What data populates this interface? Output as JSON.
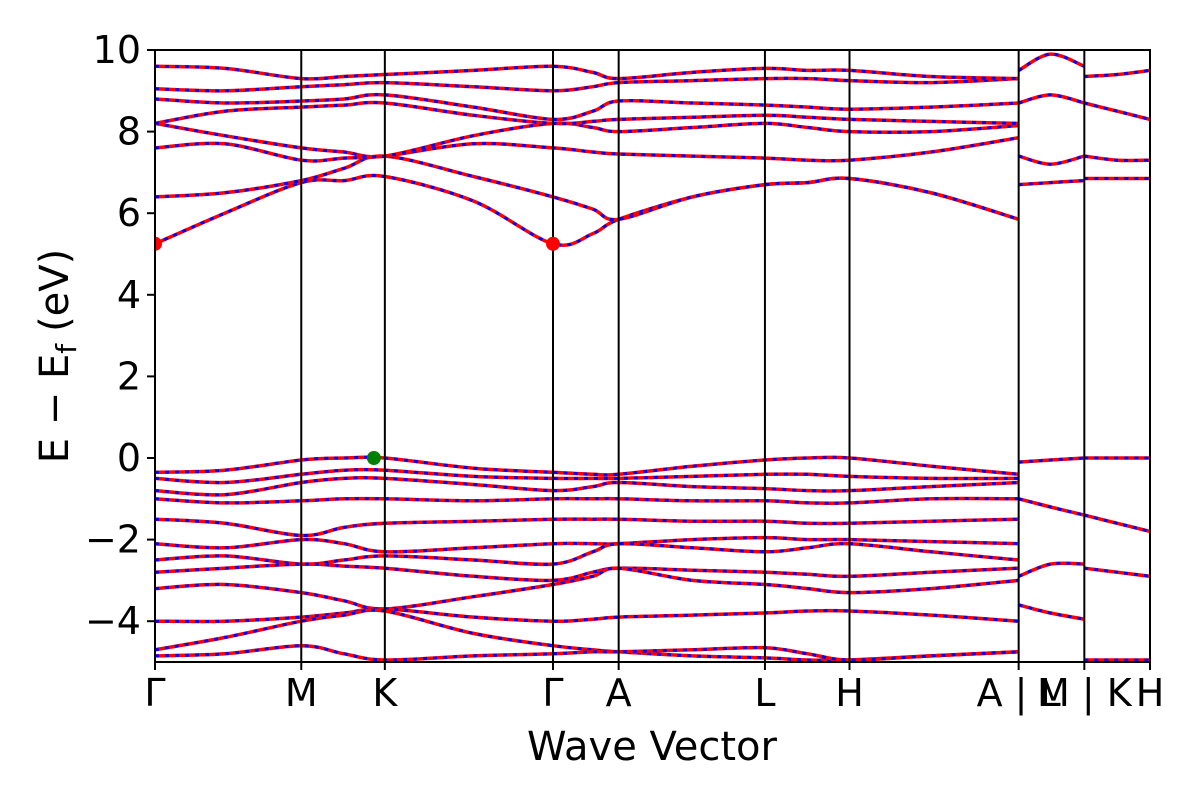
{
  "chart_data": {
    "type": "line",
    "title": "",
    "xlabel": "Wave Vector",
    "ylabel": "E − E_f (eV)",
    "ylabel_main": "E − E",
    "ylabel_sub": "f",
    "ylabel_unit": "(eV)",
    "ylim": [
      -5,
      10
    ],
    "xlim": [
      0,
      1
    ],
    "yticks": [
      -4,
      -2,
      0,
      2,
      4,
      6,
      8,
      10
    ],
    "ytick_labels": [
      "−4",
      "−2",
      "0",
      "2",
      "4",
      "6",
      "8",
      "10"
    ],
    "kpoints": [
      {
        "label": "Γ",
        "x": 0.0
      },
      {
        "label": "M",
        "x": 0.147
      },
      {
        "label": "K",
        "x": 0.231
      },
      {
        "label": "Γ",
        "x": 0.4
      },
      {
        "label": "A",
        "x": 0.466
      },
      {
        "label": "L",
        "x": 0.613
      },
      {
        "label": "H",
        "x": 0.698
      },
      {
        "label": "A | L",
        "x": 0.868
      },
      {
        "label": "M | K",
        "x": 0.934
      },
      {
        "label": "H",
        "x": 1.0
      }
    ],
    "segment_breaks": [
      0.868,
      0.934
    ],
    "grid": false,
    "legend": "none",
    "series_colors": {
      "primary": "#ff0000",
      "secondary": "#0000ff"
    },
    "series": [
      {
        "x": [
          0.0,
          0.07,
          0.147,
          0.19,
          0.231,
          0.32,
          0.4,
          0.44,
          0.466,
          0.54,
          0.613,
          0.656,
          0.698,
          0.78,
          0.868
        ],
        "values": [
          5.25,
          6.0,
          6.75,
          6.8,
          6.9,
          6.3,
          5.25,
          5.5,
          5.85,
          6.4,
          6.7,
          6.75,
          6.85,
          6.5,
          5.85
        ]
      },
      {
        "x": [
          0.0,
          0.07,
          0.147,
          0.19,
          0.231,
          0.32,
          0.4,
          0.44,
          0.466,
          0.54,
          0.613,
          0.656,
          0.698,
          0.78,
          0.868
        ],
        "values": [
          6.4,
          6.5,
          6.8,
          7.1,
          7.4,
          6.9,
          6.4,
          6.1,
          5.85,
          6.4,
          6.7,
          6.75,
          6.85,
          6.5,
          5.85
        ]
      },
      {
        "x": [
          0.0,
          0.07,
          0.147,
          0.19,
          0.231,
          0.32,
          0.4,
          0.44,
          0.466,
          0.54,
          0.613,
          0.656,
          0.698,
          0.78,
          0.868
        ],
        "values": [
          7.6,
          7.7,
          7.3,
          7.35,
          7.4,
          7.7,
          7.6,
          7.5,
          7.45,
          7.4,
          7.35,
          7.3,
          7.3,
          7.5,
          7.85
        ]
      },
      {
        "x": [
          0.0,
          0.07,
          0.147,
          0.19,
          0.231,
          0.32,
          0.4,
          0.44,
          0.466,
          0.54,
          0.613,
          0.656,
          0.698,
          0.78,
          0.868
        ],
        "values": [
          8.2,
          7.9,
          7.6,
          7.5,
          7.4,
          7.9,
          8.2,
          8.1,
          8.0,
          8.1,
          8.2,
          8.1,
          8.0,
          8.0,
          8.15
        ]
      },
      {
        "x": [
          0.0,
          0.07,
          0.147,
          0.19,
          0.231,
          0.32,
          0.4,
          0.44,
          0.466,
          0.54,
          0.613,
          0.656,
          0.698,
          0.78,
          0.868
        ],
        "values": [
          8.2,
          8.5,
          8.6,
          8.65,
          8.7,
          8.4,
          8.2,
          8.25,
          8.3,
          8.35,
          8.4,
          8.35,
          8.3,
          8.25,
          8.2
        ]
      },
      {
        "x": [
          0.0,
          0.07,
          0.147,
          0.19,
          0.231,
          0.32,
          0.4,
          0.44,
          0.466,
          0.54,
          0.613,
          0.656,
          0.698,
          0.78,
          0.868
        ],
        "values": [
          8.8,
          8.7,
          8.75,
          8.8,
          8.9,
          8.6,
          8.3,
          8.5,
          8.75,
          8.7,
          8.65,
          8.6,
          8.55,
          8.6,
          8.7
        ]
      },
      {
        "x": [
          0.0,
          0.07,
          0.147,
          0.19,
          0.231,
          0.32,
          0.4,
          0.44,
          0.466,
          0.54,
          0.613,
          0.656,
          0.698,
          0.78,
          0.868
        ],
        "values": [
          9.05,
          9.0,
          9.1,
          9.15,
          9.2,
          9.1,
          9.0,
          9.1,
          9.2,
          9.25,
          9.3,
          9.3,
          9.25,
          9.2,
          9.3
        ]
      },
      {
        "x": [
          0.0,
          0.07,
          0.147,
          0.19,
          0.231,
          0.32,
          0.4,
          0.44,
          0.466,
          0.54,
          0.613,
          0.656,
          0.698,
          0.78,
          0.868
        ],
        "values": [
          9.6,
          9.55,
          9.3,
          9.35,
          9.4,
          9.5,
          9.6,
          9.45,
          9.3,
          9.45,
          9.55,
          9.5,
          9.5,
          9.35,
          9.3
        ]
      },
      {
        "x": [
          0.0,
          0.07,
          0.147,
          0.19,
          0.231,
          0.32,
          0.4,
          0.44,
          0.466,
          0.54,
          0.613,
          0.656,
          0.698,
          0.78,
          0.868
        ],
        "values": [
          -0.35,
          -0.3,
          -0.05,
          0.0,
          0.0,
          -0.25,
          -0.35,
          -0.4,
          -0.4,
          -0.2,
          -0.05,
          0.0,
          0.0,
          -0.2,
          -0.4
        ]
      },
      {
        "x": [
          0.0,
          0.07,
          0.147,
          0.19,
          0.231,
          0.32,
          0.4,
          0.44,
          0.466,
          0.54,
          0.613,
          0.656,
          0.698,
          0.78,
          0.868
        ],
        "values": [
          -0.5,
          -0.6,
          -0.4,
          -0.3,
          -0.3,
          -0.45,
          -0.5,
          -0.5,
          -0.5,
          -0.45,
          -0.4,
          -0.4,
          -0.45,
          -0.5,
          -0.5
        ]
      },
      {
        "x": [
          0.0,
          0.07,
          0.147,
          0.19,
          0.231,
          0.32,
          0.4,
          0.44,
          0.466,
          0.54,
          0.613,
          0.656,
          0.698,
          0.78,
          0.868
        ],
        "values": [
          -0.8,
          -0.9,
          -0.6,
          -0.5,
          -0.5,
          -0.65,
          -0.8,
          -0.7,
          -0.6,
          -0.7,
          -0.75,
          -0.8,
          -0.8,
          -0.7,
          -0.6
        ]
      },
      {
        "x": [
          0.0,
          0.07,
          0.147,
          0.19,
          0.231,
          0.32,
          0.4,
          0.44,
          0.466,
          0.54,
          0.613,
          0.656,
          0.698,
          0.78,
          0.868
        ],
        "values": [
          -1.0,
          -1.1,
          -1.05,
          -1.0,
          -1.0,
          -1.05,
          -1.0,
          -1.0,
          -1.0,
          -1.05,
          -1.05,
          -1.1,
          -1.1,
          -1.0,
          -1.0
        ]
      },
      {
        "x": [
          0.0,
          0.07,
          0.147,
          0.19,
          0.231,
          0.32,
          0.4,
          0.44,
          0.466,
          0.54,
          0.613,
          0.656,
          0.698,
          0.78,
          0.868
        ],
        "values": [
          -1.5,
          -1.6,
          -1.9,
          -1.7,
          -1.6,
          -1.55,
          -1.5,
          -1.5,
          -1.5,
          -1.55,
          -1.55,
          -1.6,
          -1.6,
          -1.55,
          -1.5
        ]
      },
      {
        "x": [
          0.0,
          0.07,
          0.147,
          0.19,
          0.231,
          0.32,
          0.4,
          0.44,
          0.466,
          0.54,
          0.613,
          0.656,
          0.698,
          0.78,
          0.868
        ],
        "values": [
          -2.1,
          -2.2,
          -2.0,
          -2.1,
          -2.3,
          -2.2,
          -2.1,
          -2.1,
          -2.1,
          -2.0,
          -1.95,
          -2.0,
          -2.0,
          -2.05,
          -2.1
        ]
      },
      {
        "x": [
          0.0,
          0.07,
          0.147,
          0.19,
          0.231,
          0.32,
          0.4,
          0.44,
          0.466,
          0.54,
          0.613,
          0.656,
          0.698,
          0.78,
          0.868
        ],
        "values": [
          -2.5,
          -2.4,
          -2.6,
          -2.5,
          -2.4,
          -2.5,
          -2.6,
          -2.3,
          -2.1,
          -2.2,
          -2.3,
          -2.2,
          -2.1,
          -2.3,
          -2.5
        ]
      },
      {
        "x": [
          0.0,
          0.07,
          0.147,
          0.19,
          0.231,
          0.32,
          0.4,
          0.44,
          0.466,
          0.54,
          0.613,
          0.656,
          0.698,
          0.78,
          0.868
        ],
        "values": [
          -2.8,
          -2.7,
          -2.6,
          -2.65,
          -2.7,
          -2.9,
          -3.0,
          -2.8,
          -2.7,
          -2.75,
          -2.8,
          -2.85,
          -2.9,
          -2.8,
          -2.7
        ]
      },
      {
        "x": [
          0.0,
          0.07,
          0.147,
          0.19,
          0.231,
          0.32,
          0.4,
          0.44,
          0.466,
          0.54,
          0.613,
          0.656,
          0.698,
          0.78,
          0.868
        ],
        "values": [
          -3.2,
          -3.1,
          -3.3,
          -3.5,
          -3.7,
          -3.4,
          -3.1,
          -2.9,
          -2.7,
          -3.0,
          -3.1,
          -3.2,
          -3.3,
          -3.2,
          -3.0
        ]
      },
      {
        "x": [
          0.0,
          0.07,
          0.147,
          0.19,
          0.231,
          0.32,
          0.4,
          0.44,
          0.466,
          0.54,
          0.613,
          0.656,
          0.698,
          0.78,
          0.868
        ],
        "values": [
          -4.0,
          -4.0,
          -3.9,
          -3.8,
          -3.7,
          -3.9,
          -4.0,
          -3.95,
          -3.9,
          -3.85,
          -3.8,
          -3.75,
          -3.75,
          -3.85,
          -4.0
        ]
      },
      {
        "x": [
          0.0,
          0.07,
          0.147,
          0.19,
          0.231,
          0.32,
          0.4,
          0.44,
          0.466,
          0.54,
          0.613,
          0.656,
          0.698,
          0.78,
          0.868
        ],
        "values": [
          -4.7,
          -4.4,
          -4.0,
          -3.85,
          -3.75,
          -4.3,
          -4.6,
          -4.7,
          -4.75,
          -4.85,
          -4.9,
          -4.95,
          -4.95,
          -4.85,
          -4.75
        ]
      },
      {
        "x": [
          0.0,
          0.07,
          0.147,
          0.19,
          0.231,
          0.32,
          0.4,
          0.44,
          0.466,
          0.54,
          0.613,
          0.656,
          0.698,
          0.78,
          0.868
        ],
        "values": [
          -4.85,
          -4.8,
          -4.6,
          -4.8,
          -4.95,
          -4.85,
          -4.8,
          -4.75,
          -4.75,
          -4.7,
          -4.65,
          -4.8,
          -4.95,
          -4.85,
          -4.75
        ]
      },
      {
        "x": [
          0.868,
          0.9,
          0.934
        ],
        "values": [
          9.5,
          9.9,
          9.6
        ]
      },
      {
        "x": [
          0.868,
          0.9,
          0.934
        ],
        "values": [
          8.7,
          8.9,
          8.7
        ]
      },
      {
        "x": [
          0.868,
          0.9,
          0.934
        ],
        "values": [
          7.4,
          7.2,
          7.4
        ]
      },
      {
        "x": [
          0.868,
          0.9,
          0.934
        ],
        "values": [
          6.7,
          6.75,
          6.8
        ]
      },
      {
        "x": [
          0.868,
          0.9,
          0.934
        ],
        "values": [
          -0.1,
          -0.05,
          0.0
        ]
      },
      {
        "x": [
          0.868,
          0.9,
          0.934
        ],
        "values": [
          -1.0,
          -1.2,
          -1.4
        ]
      },
      {
        "x": [
          0.868,
          0.9,
          0.934
        ],
        "values": [
          -2.9,
          -2.6,
          -2.6
        ]
      },
      {
        "x": [
          0.868,
          0.9,
          0.934
        ],
        "values": [
          -3.6,
          -3.8,
          -3.95
        ]
      },
      {
        "x": [
          0.934,
          0.967,
          1.0
        ],
        "values": [
          9.35,
          9.4,
          9.5
        ]
      },
      {
        "x": [
          0.934,
          0.967,
          1.0
        ],
        "values": [
          8.7,
          8.5,
          8.3
        ]
      },
      {
        "x": [
          0.934,
          0.967,
          1.0
        ],
        "values": [
          7.4,
          7.3,
          7.3
        ]
      },
      {
        "x": [
          0.934,
          0.967,
          1.0
        ],
        "values": [
          6.85,
          6.85,
          6.85
        ]
      },
      {
        "x": [
          0.934,
          0.967,
          1.0
        ],
        "values": [
          0.0,
          0.0,
          0.0
        ]
      },
      {
        "x": [
          0.934,
          0.967,
          1.0
        ],
        "values": [
          -1.4,
          -1.6,
          -1.8
        ]
      },
      {
        "x": [
          0.934,
          0.967,
          1.0
        ],
        "values": [
          -2.7,
          -2.8,
          -2.9
        ]
      },
      {
        "x": [
          0.934,
          0.967,
          1.0
        ],
        "values": [
          -4.95,
          -4.95,
          -4.95
        ]
      }
    ],
    "markers": [
      {
        "name": "cbm",
        "x": 0.0,
        "y": 5.25,
        "color": "#ff0000"
      },
      {
        "name": "cbm",
        "x": 0.4,
        "y": 5.25,
        "color": "#ff0000"
      },
      {
        "name": "vbm",
        "x": 0.22,
        "y": 0.0,
        "color": "#008000"
      }
    ]
  }
}
